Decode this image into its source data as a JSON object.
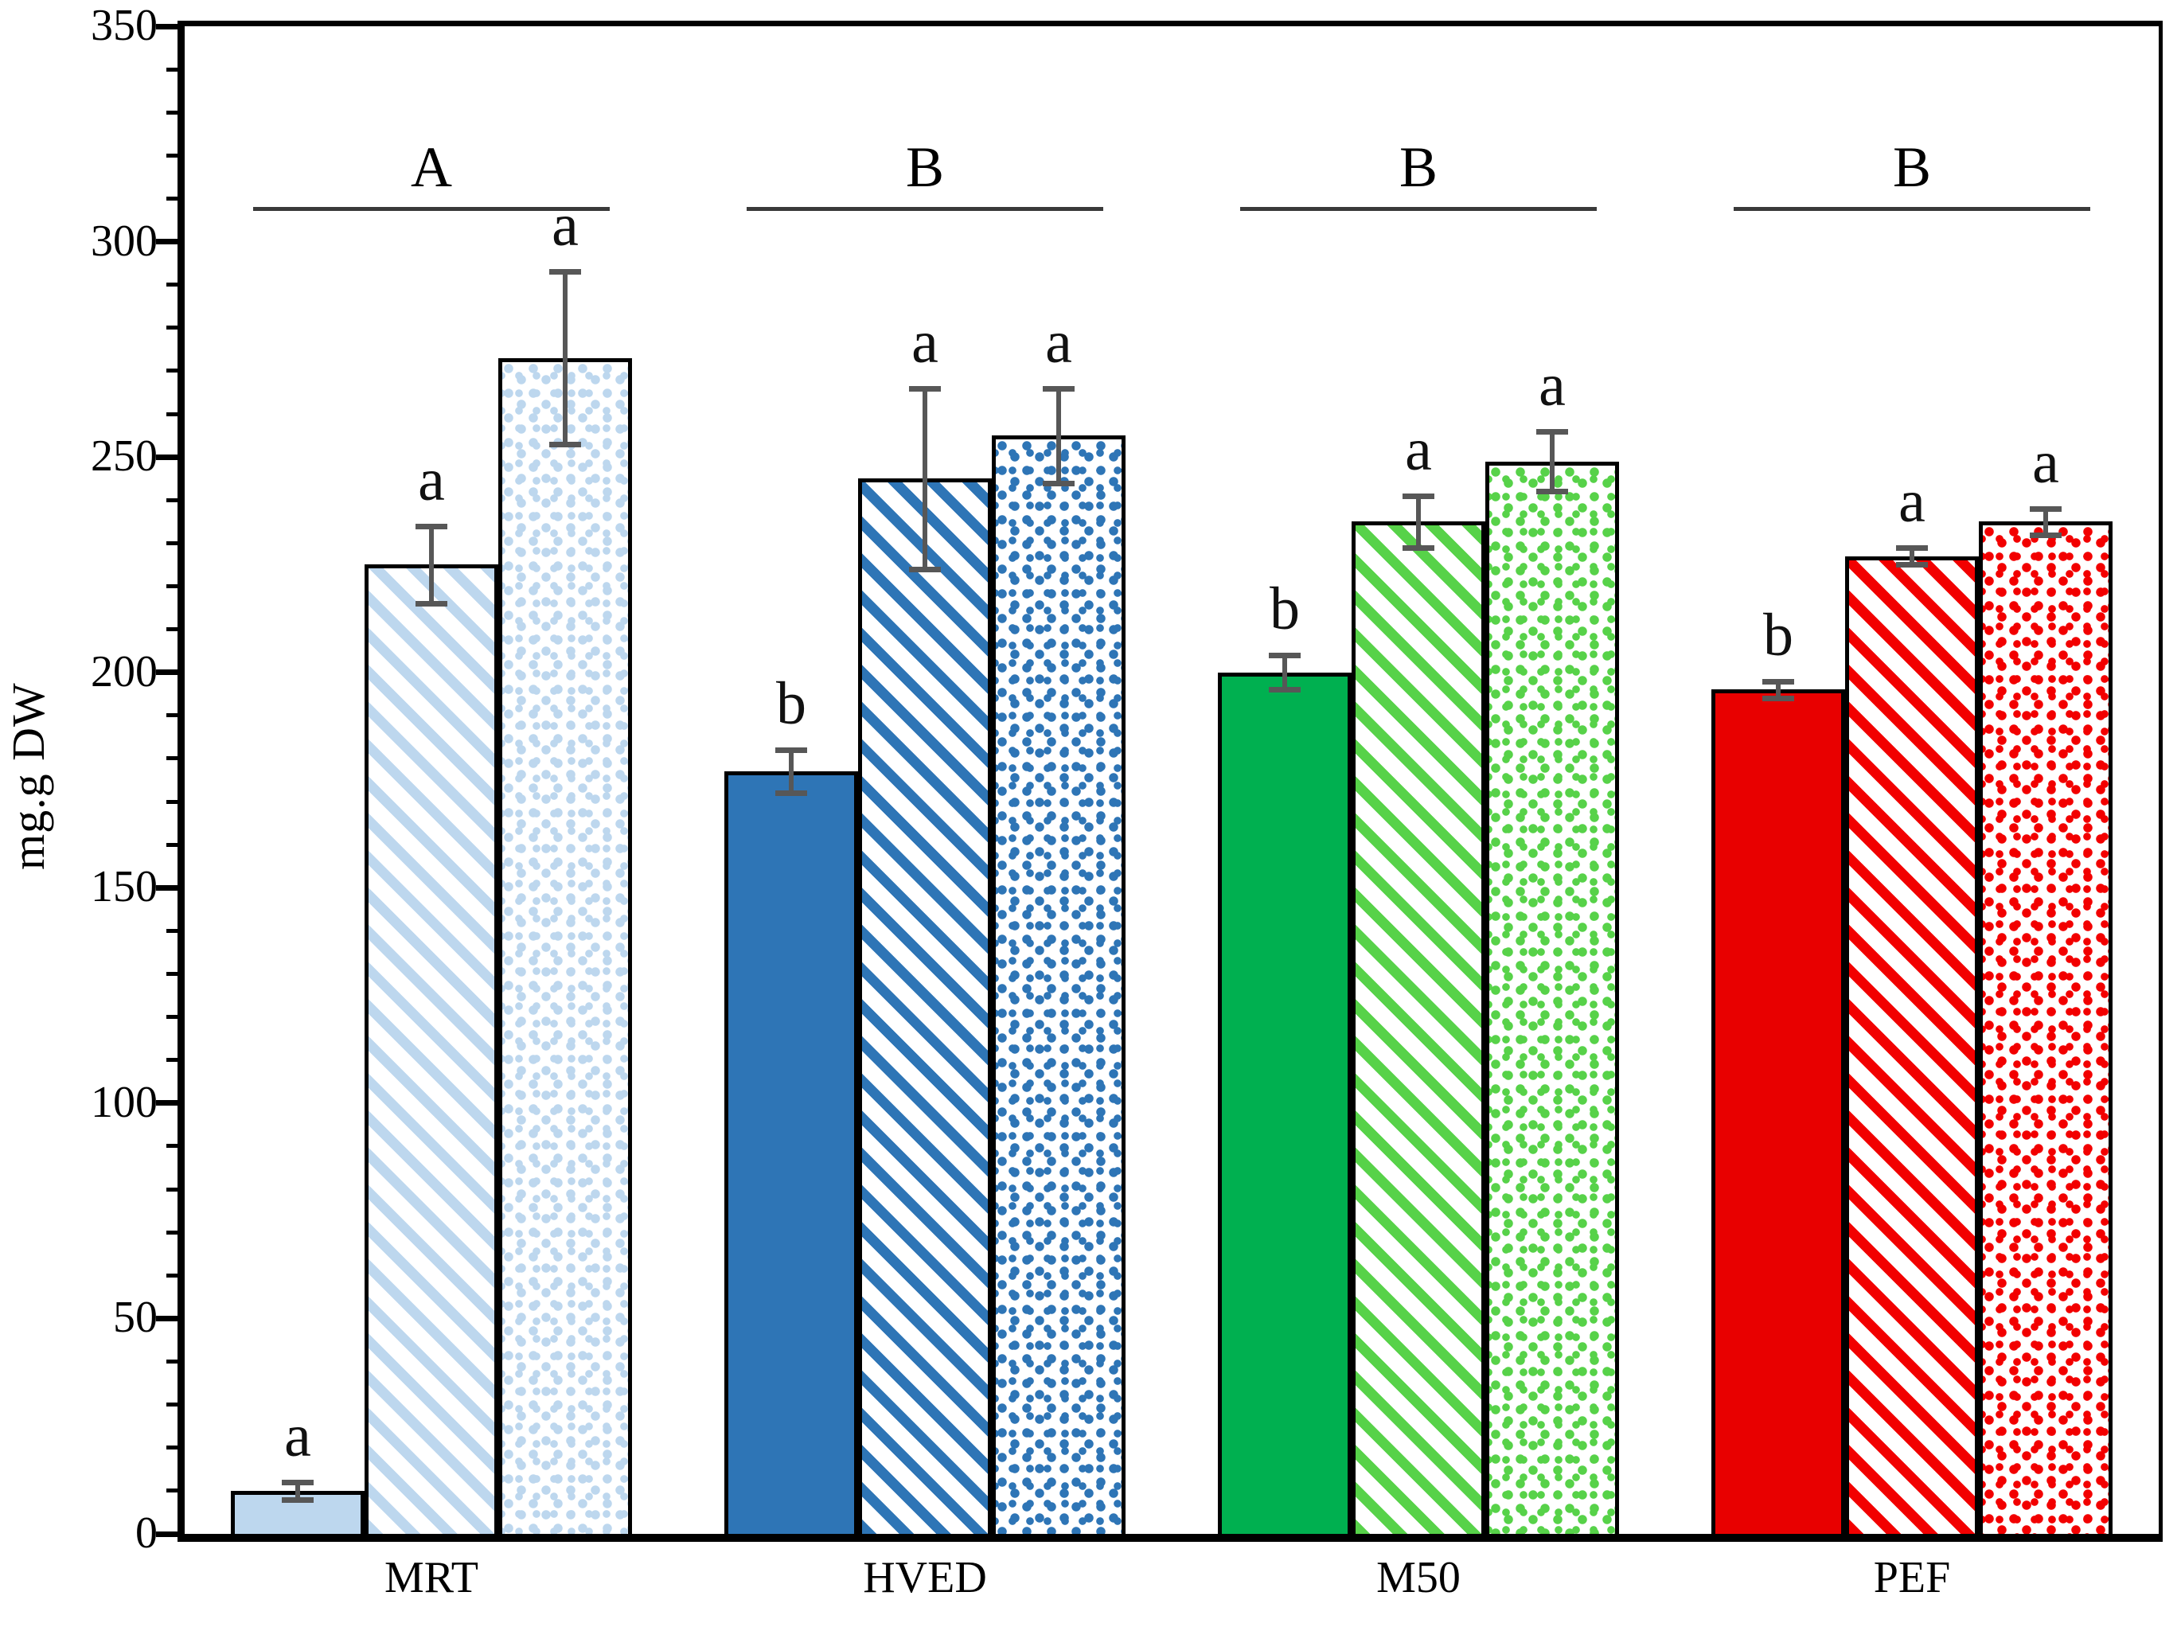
{
  "y_axis": {
    "label": "mg.g DW",
    "min": 0,
    "max": 350,
    "major_step": 50,
    "minor_step": 10,
    "tick_labels": [
      "0",
      "50",
      "100",
      "150",
      "200",
      "250",
      "300",
      "350"
    ]
  },
  "x_axis": {
    "categories": [
      "MRT",
      "HVED",
      "M50",
      "PEF"
    ]
  },
  "chart_data": {
    "type": "bar",
    "title": "",
    "xlabel": "",
    "ylabel": "mg.g DW",
    "ylim": [
      0,
      350
    ],
    "grid": false,
    "legend": "none",
    "categories": [
      "MRT",
      "HVED",
      "M50",
      "PEF"
    ],
    "series": [
      {
        "name": "solid",
        "values": [
          10,
          177,
          200,
          196
        ],
        "errors": [
          2,
          5,
          4,
          2
        ],
        "sig_letters": [
          "a",
          "b",
          "b",
          "b"
        ]
      },
      {
        "name": "diagonal-hatch",
        "values": [
          225,
          245,
          235,
          227
        ],
        "errors": [
          9,
          21,
          6,
          2
        ],
        "sig_letters": [
          "a",
          "a",
          "a",
          "a"
        ]
      },
      {
        "name": "dotted",
        "values": [
          273,
          255,
          249,
          235
        ],
        "errors": [
          20,
          11,
          7,
          3
        ],
        "sig_letters": [
          "a",
          "a",
          "a",
          "a"
        ]
      }
    ],
    "groups": [
      {
        "category": "MRT",
        "group_letter": "A",
        "solid_color": "#BDD7EE",
        "pattern_color": "#BDD7EE"
      },
      {
        "category": "HVED",
        "group_letter": "B",
        "solid_color": "#2E75B6",
        "pattern_color": "#2E75B6"
      },
      {
        "category": "M50",
        "group_letter": "B",
        "solid_color": "#00B050",
        "pattern_color": "#57D249"
      },
      {
        "category": "PEF",
        "group_letter": "B",
        "solid_color": "#E80000",
        "pattern_color": "#F20000"
      }
    ],
    "group_significance_line_y": 308,
    "error_bar_color": "#575757",
    "bar_border_color": "#000000",
    "background_color": "#FFFFFF"
  }
}
